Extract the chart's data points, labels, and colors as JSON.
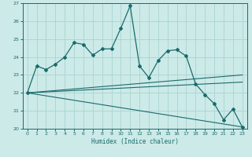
{
  "title": "",
  "xlabel": "Humidex (Indice chaleur)",
  "bg_color": "#cceae8",
  "line_color": "#1a6b6b",
  "grid_color": "#aad4d0",
  "xlim": [
    -0.5,
    23.5
  ],
  "ylim": [
    20,
    27
  ],
  "x_ticks": [
    0,
    1,
    2,
    3,
    4,
    5,
    6,
    7,
    8,
    9,
    10,
    11,
    12,
    13,
    14,
    15,
    16,
    17,
    18,
    19,
    20,
    21,
    22,
    23
  ],
  "y_ticks": [
    20,
    21,
    22,
    23,
    24,
    25,
    26,
    27
  ],
  "main_line": {
    "x": [
      0,
      1,
      2,
      3,
      4,
      5,
      6,
      7,
      8,
      9,
      10,
      11,
      12,
      13,
      14,
      15,
      16,
      17,
      18,
      19,
      20,
      21,
      22,
      23
    ],
    "y": [
      22.0,
      23.5,
      23.3,
      23.6,
      24.0,
      24.8,
      24.7,
      24.1,
      24.45,
      24.45,
      25.6,
      26.85,
      23.5,
      22.85,
      23.8,
      24.35,
      24.4,
      24.05,
      22.5,
      21.9,
      21.4,
      20.5,
      21.1,
      20.1
    ]
  },
  "trend_line1": {
    "x": [
      0,
      23
    ],
    "y": [
      22.0,
      23.0
    ]
  },
  "trend_line2": {
    "x": [
      0,
      23
    ],
    "y": [
      22.0,
      22.6
    ]
  },
  "trend_line3": {
    "x": [
      0,
      23
    ],
    "y": [
      22.0,
      20.1
    ]
  }
}
